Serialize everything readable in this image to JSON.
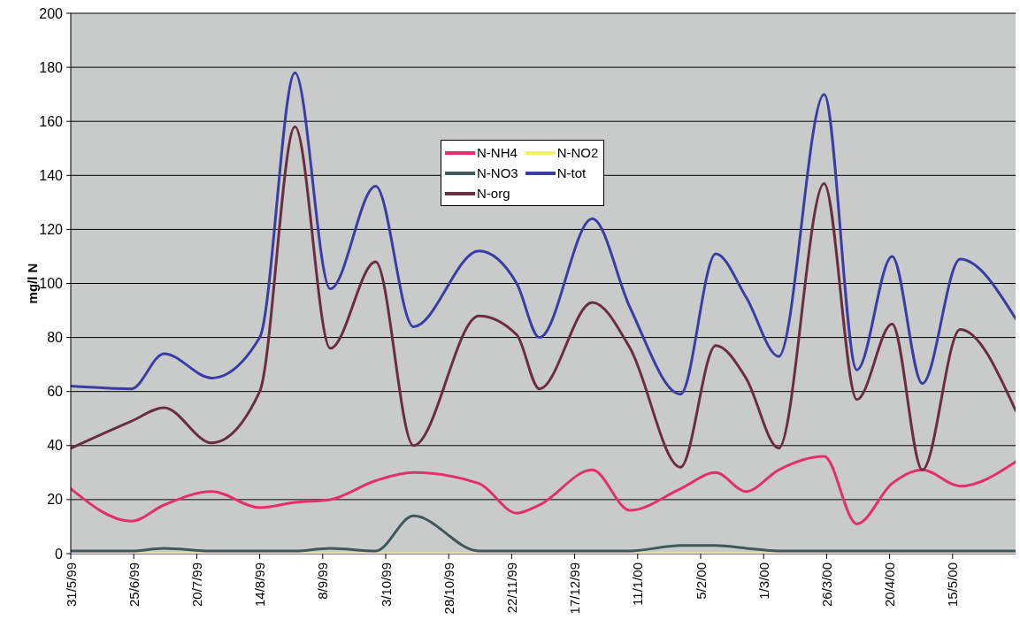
{
  "chart_data": {
    "type": "line",
    "ylabel": "mg/l N",
    "x": [
      "1999-05-31",
      "1999-06-24",
      "1999-07-07",
      "1999-07-26",
      "1999-08-14",
      "1999-08-28",
      "1999-09-11",
      "1999-09-29",
      "1999-10-14",
      "1999-11-09",
      "1999-11-24",
      "1999-12-03",
      "1999-12-24",
      "2000-01-08",
      "2000-01-28",
      "2000-02-11",
      "2000-02-23",
      "2000-03-07",
      "2000-03-25",
      "2000-04-07",
      "2000-04-21",
      "2000-05-03",
      "2000-05-18",
      "2000-06-09"
    ],
    "xlim": [
      "1999-05-31",
      "2000-06-09"
    ],
    "xticks": [
      {
        "value": "1999-05-31",
        "label": "31/5/99"
      },
      {
        "value": "1999-06-25",
        "label": "25/6/99"
      },
      {
        "value": "1999-07-20",
        "label": "20/7/99"
      },
      {
        "value": "1999-08-14",
        "label": "14/8/99"
      },
      {
        "value": "1999-09-08",
        "label": "8/9/99"
      },
      {
        "value": "1999-10-03",
        "label": "3/10/99"
      },
      {
        "value": "1999-10-28",
        "label": "28/10/99"
      },
      {
        "value": "1999-11-22",
        "label": "22/11/99"
      },
      {
        "value": "1999-12-17",
        "label": "17/12/99"
      },
      {
        "value": "2000-01-11",
        "label": "11/1/00"
      },
      {
        "value": "2000-02-05",
        "label": "5/2/00"
      },
      {
        "value": "2000-03-01",
        "label": "1/3/00"
      },
      {
        "value": "2000-03-26",
        "label": "26/3/00"
      },
      {
        "value": "2000-04-20",
        "label": "20/4/00"
      },
      {
        "value": "2000-05-15",
        "label": "15/5/00"
      }
    ],
    "ylim": [
      0,
      200
    ],
    "yticks": [
      0,
      20,
      40,
      60,
      80,
      100,
      120,
      140,
      160,
      180,
      200
    ],
    "grid": "y",
    "legend": "top",
    "series": [
      {
        "name": "N-NH4",
        "color": "#e4306a",
        "values": [
          24,
          12,
          18,
          23,
          17,
          19,
          20,
          27,
          30,
          26,
          15,
          18,
          31,
          16,
          24,
          30,
          23,
          31,
          36,
          11,
          26,
          31,
          25,
          34
        ]
      },
      {
        "name": "N-NO2",
        "color": "#f2f26a",
        "values": [
          0,
          0,
          0,
          0,
          0,
          0,
          0,
          0,
          0,
          0,
          0,
          0,
          0,
          0,
          0,
          0,
          0,
          0,
          0,
          0,
          0,
          0,
          0,
          0
        ]
      },
      {
        "name": "N-NO3",
        "color": "#3c5a5a",
        "values": [
          1,
          1,
          2,
          1,
          1,
          1,
          2,
          1,
          14,
          1,
          1,
          1,
          1,
          1,
          3,
          3,
          2,
          1,
          1,
          1,
          1,
          1,
          1,
          1
        ]
      },
      {
        "name": "N-tot",
        "color": "#3b3ca6",
        "values": [
          62,
          61,
          74,
          65,
          80,
          178,
          98,
          136,
          84,
          112,
          100,
          80,
          124,
          91,
          59,
          111,
          95,
          73,
          170,
          68,
          110,
          63,
          109,
          87
        ]
      },
      {
        "name": "N-org",
        "color": "#6b2d40",
        "values": [
          39,
          49,
          54,
          41,
          60,
          158,
          76,
          108,
          40,
          88,
          81,
          61,
          93,
          76,
          32,
          77,
          65,
          39,
          137,
          57,
          85,
          31,
          83,
          53
        ]
      }
    ]
  }
}
